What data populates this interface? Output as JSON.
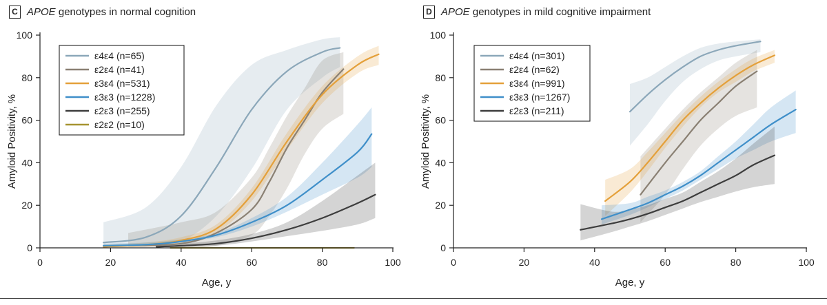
{
  "panels": [
    {
      "letter": "C",
      "title_italic": "APOE",
      "title_rest": " genotypes in normal cognition"
    },
    {
      "letter": "D",
      "title_italic": "APOE",
      "title_rest": " genotypes in mild cognitive impairment"
    }
  ],
  "chart_data": [
    {
      "type": "line",
      "title": "APOE genotypes in normal cognition",
      "xlabel": "Age, y",
      "ylabel": "Amyloid Positivity, %",
      "xlim": [
        0,
        100
      ],
      "ylim": [
        0,
        100
      ],
      "xticks": [
        0,
        20,
        40,
        60,
        80,
        100
      ],
      "yticks": [
        0,
        20,
        40,
        60,
        80,
        100
      ],
      "legend_position": "top-left",
      "series": [
        {
          "name": "ε4ε4 (n=65)",
          "color": "#8ba7b9",
          "x": [
            18,
            30,
            40,
            50,
            60,
            70,
            80,
            85
          ],
          "y": [
            2.5,
            5,
            15,
            38,
            65,
            83,
            92,
            94
          ],
          "lower": [
            1,
            1,
            3,
            15,
            37,
            65,
            80,
            85
          ],
          "upper": [
            12,
            19,
            38,
            67,
            86,
            93,
            98,
            99
          ]
        },
        {
          "name": "ε2ε4 (n=41)",
          "color": "#8a8073",
          "x": [
            25,
            40,
            50,
            60,
            65,
            70,
            75,
            80,
            86
          ],
          "y": [
            1,
            2,
            7,
            18,
            31,
            47,
            60,
            73,
            84
          ],
          "lower": [
            0.5,
            0.5,
            1,
            6,
            15,
            28,
            44,
            56,
            63
          ],
          "upper": [
            7,
            12,
            17,
            33,
            47,
            62,
            75,
            88,
            92
          ]
        },
        {
          "name": "ε3ε4 (n=531)",
          "color": "#e4a03a",
          "x": [
            18,
            30,
            40,
            50,
            60,
            70,
            80,
            90,
            96
          ],
          "y": [
            0.5,
            1.5,
            3.5,
            9,
            25,
            50,
            72,
            86,
            91
          ],
          "lower": [
            0.2,
            0.5,
            2,
            7,
            22,
            46,
            68,
            82,
            86
          ],
          "upper": [
            1.5,
            2.5,
            5,
            11,
            28,
            54,
            76,
            90,
            95
          ]
        },
        {
          "name": "ε3ε3 (n=1228)",
          "color": "#3f8fc9",
          "x": [
            18,
            30,
            40,
            50,
            60,
            70,
            80,
            90,
            94
          ],
          "y": [
            1,
            1.5,
            3,
            6,
            12,
            20,
            32,
            45,
            53.5
          ],
          "lower": [
            0.5,
            1,
            2.5,
            5,
            10,
            17,
            25,
            33,
            38
          ],
          "upper": [
            2,
            2.5,
            4,
            7,
            14,
            24,
            40,
            58,
            66
          ]
        },
        {
          "name": "ε2ε3 (n=255)",
          "color": "#3d3d3d",
          "x": [
            33,
            40,
            50,
            60,
            70,
            80,
            90,
            95
          ],
          "y": [
            0.5,
            1,
            2,
            4.5,
            8.5,
            14,
            21,
            25
          ],
          "lower": [
            0.2,
            0.5,
            1,
            3,
            5.5,
            8,
            11,
            14
          ],
          "upper": [
            1,
            2,
            3.5,
            6.5,
            12,
            22,
            34,
            40
          ]
        },
        {
          "name": "ε2ε2 (n=10)",
          "color": "#a69330",
          "x": [
            37,
            89
          ],
          "y": [
            0,
            0
          ]
        }
      ]
    },
    {
      "type": "line",
      "title": "APOE genotypes in mild cognitive impairment",
      "xlabel": "Age, y",
      "ylabel": "Amyloid Positivity, %",
      "xlim": [
        0,
        100
      ],
      "ylim": [
        0,
        100
      ],
      "xticks": [
        0,
        20,
        40,
        60,
        80,
        100
      ],
      "yticks": [
        0,
        20,
        40,
        60,
        80,
        100
      ],
      "legend_position": "top-left",
      "series": [
        {
          "name": "ε4ε4 (n=301)",
          "color": "#8ba7b9",
          "x": [
            50,
            55,
            60,
            65,
            70,
            75,
            80,
            87
          ],
          "y": [
            64,
            72,
            79,
            85,
            90,
            93,
            95,
            97
          ],
          "lower": [
            48,
            58,
            69,
            78,
            84,
            88,
            90,
            92
          ],
          "upper": [
            77,
            80,
            85,
            90,
            94,
            96,
            97,
            98
          ]
        },
        {
          "name": "ε2ε4 (n=62)",
          "color": "#8a8073",
          "x": [
            53,
            60,
            65,
            70,
            75,
            80,
            86
          ],
          "y": [
            25,
            40,
            50,
            60,
            68,
            76,
            83
          ],
          "lower": [
            12,
            25,
            37,
            48,
            56,
            62,
            66
          ],
          "upper": [
            43,
            56,
            65,
            73,
            80,
            87,
            93
          ]
        },
        {
          "name": "ε3ε4 (n=991)",
          "color": "#e4a03a",
          "x": [
            43,
            50,
            55,
            60,
            65,
            70,
            75,
            80,
            85,
            91
          ],
          "y": [
            22,
            31,
            40,
            50,
            60,
            68,
            75,
            81,
            86,
            90.5
          ],
          "lower": [
            15,
            26,
            36,
            47,
            57,
            66,
            73,
            78,
            83,
            87
          ],
          "upper": [
            32,
            37,
            45,
            54,
            63,
            71,
            78,
            84,
            89,
            93
          ]
        },
        {
          "name": "ε3ε3 (n=1267)",
          "color": "#3f8fc9",
          "x": [
            42,
            50,
            55,
            60,
            65,
            70,
            75,
            80,
            85,
            90,
            97
          ],
          "y": [
            13.5,
            18,
            21,
            25,
            29,
            34,
            40,
            46,
            52,
            58,
            65
          ],
          "lower": [
            11,
            15.5,
            19,
            23,
            27,
            32,
            37,
            42,
            46,
            50,
            54
          ],
          "upper": [
            20,
            21,
            24,
            27,
            31,
            36,
            43,
            50,
            58,
            66,
            74
          ]
        },
        {
          "name": "ε2ε3 (n=211)",
          "color": "#3d3d3d",
          "x": [
            36,
            45,
            50,
            55,
            60,
            65,
            70,
            75,
            80,
            85,
            91
          ],
          "y": [
            8.5,
            11.5,
            13.5,
            16,
            19,
            22,
            26,
            30,
            34,
            39,
            43.5
          ],
          "lower": [
            3.5,
            7.5,
            10,
            12.5,
            15.5,
            18.5,
            21.5,
            24,
            26.5,
            28.5,
            30
          ],
          "upper": [
            20.5,
            17,
            18,
            20,
            23,
            26,
            31,
            36,
            42,
            49,
            57
          ]
        }
      ]
    }
  ]
}
